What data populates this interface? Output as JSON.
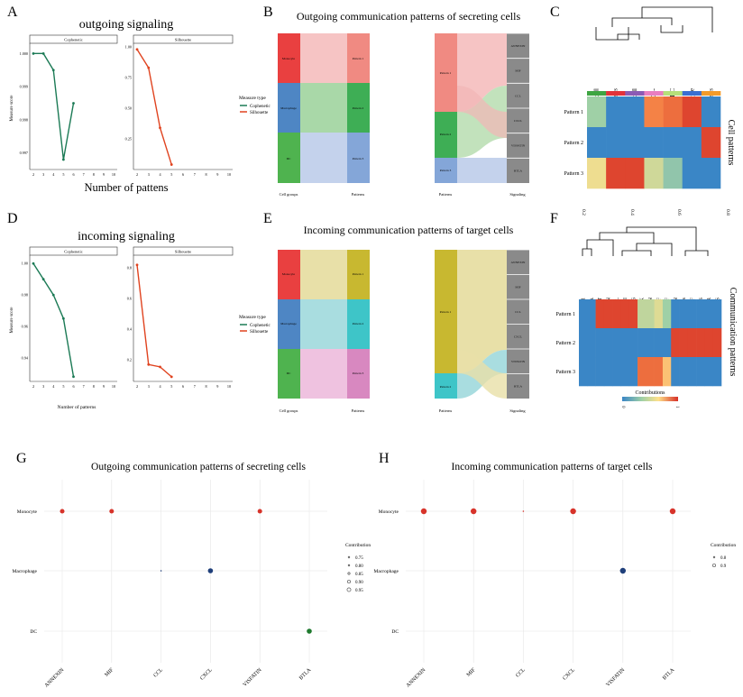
{
  "colors": {
    "cophenetic": "#1b7a55",
    "silhouette": "#e0431f",
    "monocyte_red": "#d7332a",
    "macrophage_blue": "#1f3f7a",
    "dc_green": "#1e7a2e",
    "strip_bg": "#ffffff",
    "grid": "#e6e6e6",
    "hm_low": "#3a86c6",
    "hm_mid": "#9fd0a6",
    "hm_hi": "#d73027"
  },
  "panel_letters": [
    "A",
    "B",
    "C",
    "D",
    "E",
    "F",
    "G",
    "H"
  ],
  "panel_A": {
    "title": "outgoing signaling",
    "xlabel": "Number of pattens",
    "ylabel": "Measure score",
    "legend_title": "Measure type",
    "legend_items": [
      "Cophenetic",
      "Silhouette"
    ]
  },
  "panel_D": {
    "title": "incoming signaling",
    "xlabel": "Number of patterns",
    "ylabel": "Measure score",
    "legend_title": "Measure type",
    "legend_items": [
      "Cophenetic",
      "Silhouette"
    ]
  },
  "panel_B": {
    "title": "Outgoing communication patterns of secreting cells",
    "cell_groups": [
      "Monocyte",
      "Macrophage",
      "DC"
    ],
    "patterns": [
      "Pattern 1",
      "Pattern 2",
      "Pattern 3"
    ],
    "signaling": [
      "ANNEXIN",
      "MIF",
      "CCL",
      "CXCL",
      "VISFATIN",
      "BTLA"
    ],
    "axis_labels": [
      "Cell groups",
      "Patterns",
      "Patterns",
      "Signaling"
    ]
  },
  "panel_E": {
    "title": "Incoming communication patterns of target cells",
    "cell_groups": [
      "Monocyte",
      "Macrophage",
      "DC"
    ],
    "patterns": [
      "Pattern 1",
      "Pattern 2",
      "Pattern 3"
    ],
    "patterns_right": [
      "Pattern 1",
      "Pattern 2"
    ],
    "signaling": [
      "ANNEXIN",
      "MIF",
      "CCL",
      "CXCL",
      "VISFATIN",
      "BTLA"
    ],
    "axis_labels": [
      "Cell groups",
      "Patterns",
      "Patterns",
      "Signaling"
    ]
  },
  "panel_C": {
    "columns": [
      "B_cell",
      "T_cells",
      "NK_cell",
      "Pre-B_cell_CD34-",
      "DC",
      "Monocyte",
      "Endothelial_cells"
    ],
    "rows": [
      "Pattern 1",
      "Pattern 2",
      "Pattern 3"
    ],
    "side_label": "Cell patterns"
  },
  "panel_F": {
    "scale_ticks": [
      "0.2",
      "0.4",
      "0.6",
      "0.8"
    ],
    "columns": [
      "IL1",
      "BTLA",
      "COMPLEMENT",
      "ANNEXIN",
      "CCL",
      "IFN-II",
      "IL6",
      "MK",
      "GALECTIN",
      "MIF",
      "BAFF",
      "VISFATIN",
      "PARs",
      "VEGF",
      "GAS",
      "CALCR",
      "PROS"
    ],
    "rows": [
      "Pattern 1",
      "Pattern 2",
      "Pattern 3"
    ],
    "side_label": "Communication patterns",
    "colorbar_title": "Contributions",
    "colorbar_ticks": [
      "0",
      "1"
    ]
  },
  "chart_data": [
    {
      "panel": "A",
      "type": "line",
      "title": "outgoing signaling",
      "xlabel": "Number of pattens",
      "ylabel": "Measure score",
      "facets": [
        {
          "name": "Cophenetic",
          "x": [
            2,
            3,
            4,
            5,
            6
          ],
          "y": [
            1.0,
            1.0,
            0.9995,
            0.9968,
            0.9985
          ],
          "ylim": [
            0.9965,
            1.0002
          ],
          "yticks": [
            0.997,
            0.998,
            0.999,
            1.0
          ],
          "ytick_labels": [
            "0.997",
            "0.998",
            "0.999",
            "1.000"
          ]
        },
        {
          "name": "Silhouette",
          "x": [
            2,
            3,
            4,
            5
          ],
          "y": [
            0.98,
            0.83,
            0.34,
            0.04
          ],
          "ylim": [
            0.0,
            1.0
          ],
          "yticks": [
            0.25,
            0.5,
            0.75,
            1.0
          ],
          "ytick_labels": [
            "0.25",
            "0.50",
            "0.75",
            "1.00"
          ]
        }
      ],
      "xticks": [
        2,
        3,
        4,
        5,
        6,
        7,
        8,
        9,
        10
      ]
    },
    {
      "panel": "D",
      "type": "line",
      "title": "incoming signaling",
      "xlabel": "Number of patterns",
      "ylabel": "Measure score",
      "facets": [
        {
          "name": "Cophenetic",
          "x": [
            2,
            3,
            4,
            5,
            6
          ],
          "y": [
            1.0,
            0.99,
            0.98,
            0.965,
            0.928
          ],
          "ylim": [
            0.925,
            1.003
          ],
          "yticks": [
            0.94,
            0.96,
            0.98,
            1.0
          ],
          "ytick_labels": [
            "0.94",
            "0.96",
            "0.98",
            "1.00"
          ]
        },
        {
          "name": "Silhouette",
          "x": [
            2,
            3,
            4,
            5
          ],
          "y": [
            0.82,
            0.17,
            0.155,
            0.09
          ],
          "ylim": [
            0.06,
            0.86
          ],
          "yticks": [
            0.2,
            0.4,
            0.6,
            0.8
          ],
          "ytick_labels": [
            "0.2",
            "0.4",
            "0.6",
            "0.8"
          ]
        }
      ],
      "xticks": [
        2,
        3,
        4,
        5,
        6,
        7,
        8,
        9,
        10
      ]
    },
    {
      "panel": "G",
      "type": "scatter",
      "title": "Outgoing communication patterns of secreting cells",
      "x_categories": [
        "ANNEXIN",
        "MIF",
        "CCL",
        "CXCL",
        "VISFATIN",
        "BTLA"
      ],
      "y_categories": [
        "Monocyte",
        "Macrophage",
        "DC"
      ],
      "points": [
        {
          "x": "ANNEXIN",
          "y": "Monocyte",
          "contribution": 0.9,
          "color": "#d7332a"
        },
        {
          "x": "MIF",
          "y": "Monocyte",
          "contribution": 0.9,
          "color": "#d7332a"
        },
        {
          "x": "VISFATIN",
          "y": "Monocyte",
          "contribution": 0.9,
          "color": "#d7332a"
        },
        {
          "x": "CCL",
          "y": "Macrophage",
          "contribution": 0.75,
          "color": "#1f3f7a"
        },
        {
          "x": "CXCL",
          "y": "Macrophage",
          "contribution": 0.92,
          "color": "#1f3f7a"
        },
        {
          "x": "BTLA",
          "y": "DC",
          "contribution": 0.92,
          "color": "#1e7a2e"
        }
      ],
      "legend_title": "Contribution",
      "legend_values": [
        "0.75",
        "0.80",
        "0.85",
        "0.90",
        "0.95"
      ]
    },
    {
      "panel": "H",
      "type": "scatter",
      "title": "Incoming communication patterns of target cells",
      "x_categories": [
        "ANNEXIN",
        "MIF",
        "CCL",
        "CXCL",
        "VISFATIN",
        "BTLA"
      ],
      "y_categories": [
        "Monocyte",
        "Macrophage",
        "DC"
      ],
      "points": [
        {
          "x": "ANNEXIN",
          "y": "Monocyte",
          "contribution": 0.95,
          "color": "#d7332a"
        },
        {
          "x": "MIF",
          "y": "Monocyte",
          "contribution": 0.95,
          "color": "#d7332a"
        },
        {
          "x": "CCL",
          "y": "Monocyte",
          "contribution": 0.7,
          "color": "#d7332a"
        },
        {
          "x": "CXCL",
          "y": "Monocyte",
          "contribution": 0.95,
          "color": "#d7332a"
        },
        {
          "x": "BTLA",
          "y": "Monocyte",
          "contribution": 0.95,
          "color": "#d7332a"
        },
        {
          "x": "VISFATIN",
          "y": "Macrophage",
          "contribution": 0.95,
          "color": "#1f3f7a"
        }
      ],
      "legend_title": "Contribution",
      "legend_values": [
        "0.8",
        "0.9"
      ]
    },
    {
      "panel": "C",
      "type": "heatmap",
      "rows": [
        "Pattern 1",
        "Pattern 2",
        "Pattern 3"
      ],
      "columns": [
        "B_cell",
        "T_cells",
        "NK_cell",
        "Pre-B_cell_CD34-",
        "DC",
        "Monocyte",
        "Endothelial_cells"
      ],
      "values": [
        [
          0.35,
          0.0,
          0.0,
          0.8,
          0.85,
          0.95,
          0.0
        ],
        [
          0.0,
          0.0,
          0.0,
          0.0,
          0.0,
          0.0,
          0.95
        ],
        [
          0.6,
          0.95,
          0.95,
          0.5,
          0.3,
          0.0,
          0.0
        ]
      ]
    },
    {
      "panel": "F",
      "type": "heatmap",
      "rows": [
        "Pattern 1",
        "Pattern 2",
        "Pattern 3"
      ],
      "columns": [
        "IL1",
        "BTLA",
        "COMPLEMENT",
        "ANNEXIN",
        "CCL",
        "IFN-II",
        "IL6",
        "MK",
        "GALECTIN",
        "MIF",
        "BAFF",
        "VISFATIN",
        "PARs",
        "VEGF",
        "GAS",
        "CALCR",
        "PROS"
      ],
      "values": [
        [
          0.0,
          0.0,
          0.95,
          0.95,
          0.95,
          0.95,
          0.95,
          0.45,
          0.45,
          0.55,
          0.35,
          0.0,
          0.0,
          0.0,
          0.0,
          0.0,
          0.0
        ],
        [
          0.0,
          0.0,
          0.0,
          0.0,
          0.0,
          0.0,
          0.0,
          0.0,
          0.0,
          0.0,
          0.0,
          0.95,
          0.95,
          0.95,
          0.95,
          0.95,
          0.95
        ],
        [
          0.0,
          0.0,
          0.0,
          0.0,
          0.0,
          0.0,
          0.0,
          0.85,
          0.85,
          0.85,
          0.7,
          0.0,
          0.0,
          0.0,
          0.0,
          0.0,
          0.0
        ]
      ]
    }
  ]
}
